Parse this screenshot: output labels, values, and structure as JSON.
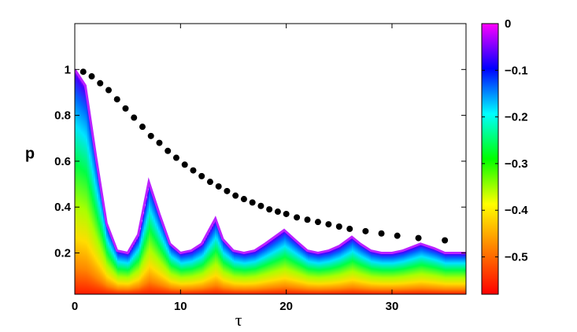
{
  "chart_data": {
    "type": "area",
    "xlabel": "τ",
    "ylabel": "p",
    "xlim": [
      0,
      37
    ],
    "ylim": [
      0.02,
      1.2
    ],
    "xticks": [
      "0",
      "10",
      "20",
      "30"
    ],
    "yticks": [
      "0.2",
      "0.4",
      "0.6",
      "0.8",
      "1"
    ],
    "colorbar": {
      "range": [
        -0.58,
        0
      ],
      "ticks": [
        "0",
        "−0.1",
        "−0.2",
        "−0.3",
        "−0.4",
        "−0.5"
      ],
      "tick_values": [
        0,
        -0.1,
        -0.2,
        -0.3,
        -0.4,
        -0.5
      ],
      "colormap": [
        "#ff0000",
        "#ff7f00",
        "#ffff00",
        "#00ff00",
        "#00ffff",
        "#0000ff",
        "#ff00ff"
      ]
    },
    "envelope": {
      "x": [
        0,
        1,
        2,
        3,
        4,
        5,
        6,
        7,
        8,
        9,
        10,
        11,
        12,
        13.3,
        14,
        15,
        16,
        17,
        18,
        19.8,
        21,
        22,
        23,
        24,
        25,
        26.2,
        27,
        28,
        29,
        30,
        31,
        32.7,
        34,
        35,
        36,
        37
      ],
      "y": [
        1.0,
        0.93,
        0.62,
        0.33,
        0.21,
        0.2,
        0.28,
        0.51,
        0.37,
        0.24,
        0.2,
        0.21,
        0.24,
        0.35,
        0.26,
        0.21,
        0.2,
        0.21,
        0.24,
        0.3,
        0.25,
        0.21,
        0.2,
        0.21,
        0.23,
        0.27,
        0.24,
        0.21,
        0.2,
        0.2,
        0.21,
        0.24,
        0.22,
        0.2,
        0.2,
        0.2
      ]
    },
    "series": [
      {
        "type": "scatter",
        "color": "#000000",
        "x": [
          0.8,
          1.6,
          2.4,
          3.2,
          4.0,
          4.8,
          5.6,
          6.4,
          7.2,
          8.0,
          8.8,
          9.6,
          10.4,
          11.2,
          12.0,
          12.8,
          13.6,
          14.4,
          15.2,
          16.0,
          16.8,
          17.6,
          18.4,
          19.2,
          20.0,
          21.0,
          22.0,
          23.0,
          24.0,
          25.0,
          26.0,
          27.5,
          29.0,
          30.5,
          32.5,
          35.0
        ],
        "y": [
          0.99,
          0.97,
          0.94,
          0.91,
          0.87,
          0.83,
          0.79,
          0.75,
          0.71,
          0.68,
          0.645,
          0.615,
          0.585,
          0.56,
          0.535,
          0.51,
          0.49,
          0.47,
          0.45,
          0.435,
          0.42,
          0.405,
          0.39,
          0.38,
          0.37,
          0.355,
          0.345,
          0.335,
          0.325,
          0.315,
          0.305,
          0.295,
          0.285,
          0.275,
          0.265,
          0.255
        ]
      }
    ]
  }
}
